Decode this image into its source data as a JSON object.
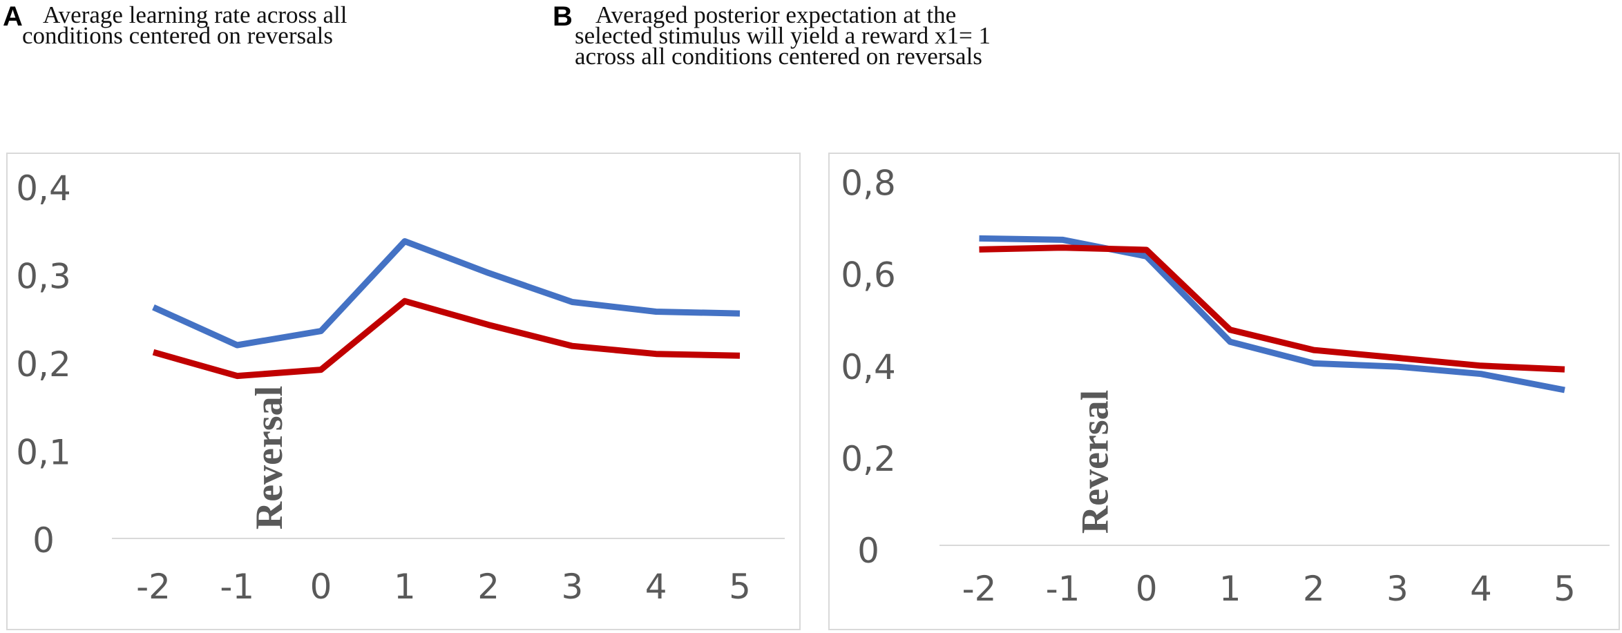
{
  "panels": [
    {
      "letter": "A",
      "caption_line1": "Average learning rate across all",
      "caption_line2": "conditions centered on reversals"
    },
    {
      "letter": "B",
      "caption_line1": "Averaged posterior expectation at the",
      "caption_line2": "selected stimulus will yield a reward x1= 1",
      "caption_line3": "across all conditions centered on reversals"
    }
  ],
  "chart_data": [
    {
      "type": "line",
      "title": "Average learning rate across all conditions centered on reversals",
      "categories": [
        "-2",
        "-1",
        "0",
        "1",
        "2",
        "3",
        "4",
        "5"
      ],
      "y_ticks": [
        "0",
        "0,1",
        "0,2",
        "0,3",
        "0,4"
      ],
      "ylim": [
        0,
        0.4
      ],
      "annotation": "Reversal",
      "series": [
        {
          "name": "blue",
          "color": "#4472C4",
          "values": [
            0.265,
            0.222,
            0.238,
            0.34,
            0.304,
            0.271,
            0.26,
            0.258
          ]
        },
        {
          "name": "red",
          "color": "#C00000",
          "values": [
            0.214,
            0.187,
            0.194,
            0.272,
            0.245,
            0.221,
            0.212,
            0.21
          ]
        }
      ]
    },
    {
      "type": "line",
      "title": "Averaged posterior expectation at the selected stimulus will yield a reward x1= 1 across all conditions centered on reversals",
      "categories": [
        "-2",
        "-1",
        "0",
        "1",
        "2",
        "3",
        "4",
        "5"
      ],
      "y_ticks": [
        "0",
        "0,2",
        "0,4",
        "0,6",
        "0,8"
      ],
      "ylim": [
        0,
        0.8
      ],
      "annotation": "Reversal",
      "series": [
        {
          "name": "blue",
          "color": "#4472C4",
          "values": [
            0.68,
            0.677,
            0.641,
            0.455,
            0.408,
            0.401,
            0.385,
            0.35
          ]
        },
        {
          "name": "red",
          "color": "#C00000",
          "values": [
            0.656,
            0.66,
            0.655,
            0.481,
            0.437,
            0.42,
            0.403,
            0.395
          ]
        }
      ]
    }
  ]
}
